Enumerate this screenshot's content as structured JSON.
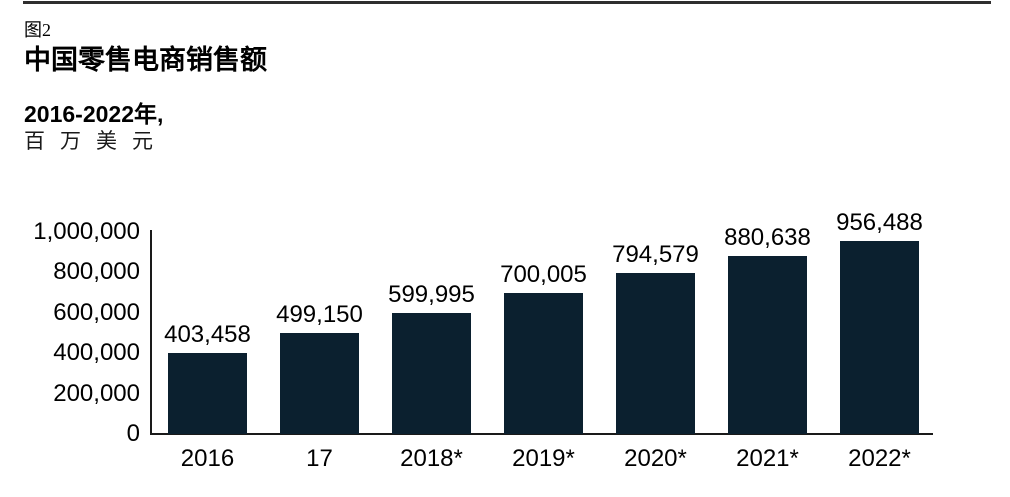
{
  "figure": {
    "label": "图2",
    "title": "中国零售电商销售额",
    "period": "2016-2022年,",
    "unit": "百万美元"
  },
  "chart_data": {
    "type": "bar",
    "title": "中国零售电商销售额",
    "subtitle": "2016-2022年, 百万美元",
    "categories": [
      "2016",
      "17",
      "2018*",
      "2019*",
      "2020*",
      "2021*",
      "2022*"
    ],
    "values": [
      403458,
      499150,
      599995,
      700005,
      794579,
      880638,
      956488
    ],
    "value_labels": [
      "403,458",
      "499,150",
      "599,995",
      "700,005",
      "794,579",
      "880,638",
      "956,488"
    ],
    "y_ticks": [
      "1,000,000",
      "800,000",
      "600,000",
      "400,000",
      "200,000",
      "0"
    ],
    "ylim": [
      0,
      1000000
    ],
    "xlabel": "",
    "ylabel": "",
    "grid": false,
    "legend": false,
    "bar_color": "#0b202f",
    "axis_color": "#1a1a1a",
    "text_color": "#000000"
  }
}
